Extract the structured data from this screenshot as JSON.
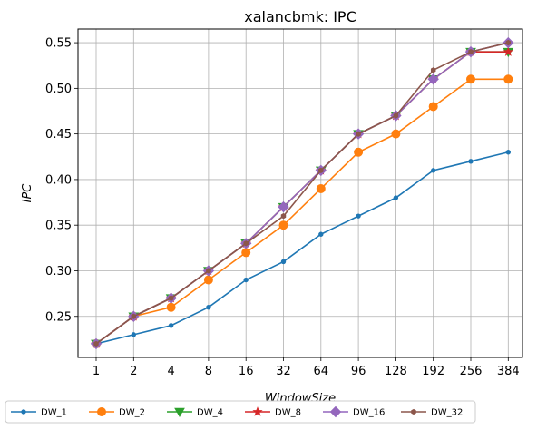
{
  "chart_data": {
    "type": "line",
    "title": "xalancbmk: IPC",
    "xlabel": "WindowSize",
    "ylabel": "IPC",
    "categories": [
      "1",
      "2",
      "4",
      "8",
      "16",
      "32",
      "64",
      "96",
      "128",
      "192",
      "256",
      "384"
    ],
    "ylim": [
      0.205,
      0.565
    ],
    "yticks": [
      "0.25",
      "0.30",
      "0.35",
      "0.40",
      "0.45",
      "0.50",
      "0.55"
    ],
    "grid": true,
    "legend_position": "bottom",
    "series": [
      {
        "name": "DW_1",
        "color": "#1f77b4",
        "marker": "point",
        "values": [
          0.22,
          0.23,
          0.24,
          0.26,
          0.29,
          0.31,
          0.34,
          0.36,
          0.38,
          0.41,
          0.42,
          0.43
        ]
      },
      {
        "name": "DW_2",
        "color": "#ff7f0e",
        "marker": "circle",
        "values": [
          0.22,
          0.25,
          0.26,
          0.29,
          0.32,
          0.35,
          0.39,
          0.43,
          0.45,
          0.48,
          0.51,
          0.51
        ]
      },
      {
        "name": "DW_4",
        "color": "#2ca02c",
        "marker": "triangle-down",
        "values": [
          0.22,
          0.25,
          0.27,
          0.3,
          0.33,
          0.37,
          0.41,
          0.45,
          0.47,
          0.51,
          0.54,
          0.54
        ]
      },
      {
        "name": "DW_8",
        "color": "#d62728",
        "marker": "star",
        "values": [
          0.22,
          0.25,
          0.27,
          0.3,
          0.33,
          0.37,
          0.41,
          0.45,
          0.47,
          0.51,
          0.54,
          0.54
        ]
      },
      {
        "name": "DW_16",
        "color": "#9467bd",
        "marker": "diamond",
        "values": [
          0.22,
          0.25,
          0.27,
          0.3,
          0.33,
          0.37,
          0.41,
          0.45,
          0.47,
          0.51,
          0.54,
          0.55
        ]
      },
      {
        "name": "DW_32",
        "color": "#8c564b",
        "marker": "hexagon",
        "values": [
          0.22,
          0.25,
          0.27,
          0.3,
          0.33,
          0.36,
          0.41,
          0.45,
          0.47,
          0.52,
          0.54,
          0.55
        ]
      }
    ]
  }
}
